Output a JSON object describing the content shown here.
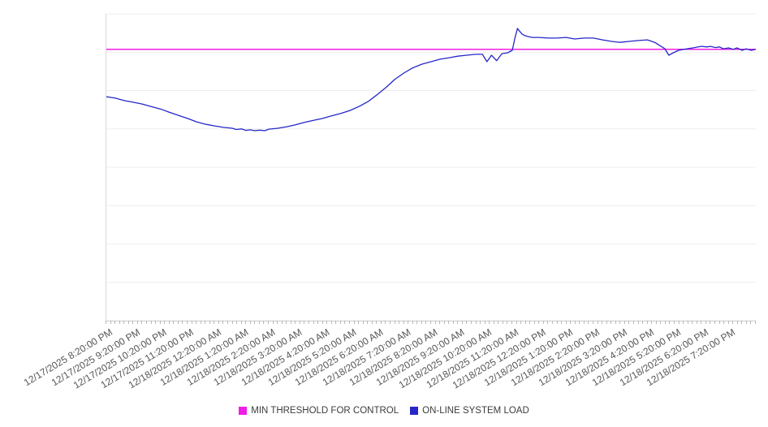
{
  "chart_data": {
    "type": "line",
    "title": "",
    "xlabel": "",
    "ylabel": "",
    "ylim": [
      0,
      100
    ],
    "grid_divisions": 8,
    "grid_on": true,
    "grid_color": "#ededed",
    "axis_color": "#b5b5b5",
    "label_color": "#565656",
    "legend_position": "bottom-center",
    "minor_ticks_per_label": 6,
    "x_labels": [
      "12/17/2025 8:20:00 PM",
      "12/17/2025 9:20:00 PM",
      "12/17/2025 10:20:00 PM",
      "12/17/2025 11:20:00 PM",
      "12/18/2025 12:20:00 AM",
      "12/18/2025 1:20:00 AM",
      "12/18/2025 2:20:00 AM",
      "12/18/2025 3:20:00 AM",
      "12/18/2025 4:20:00 AM",
      "12/18/2025 5:20:00 AM",
      "12/18/2025 6:20:00 AM",
      "12/18/2025 7:20:00 AM",
      "12/18/2025 8:20:00 AM",
      "12/18/2025 9:20:00 AM",
      "12/18/2025 10:20:00 AM",
      "12/18/2025 11:20:00 AM",
      "12/18/2025 12:20:00 PM",
      "12/18/2025 1:20:00 PM",
      "12/18/2025 2:20:00 PM",
      "12/18/2025 3:20:00 PM",
      "12/18/2025 4:20:00 PM",
      "12/18/2025 5:20:00 PM",
      "12/18/2025 6:20:00 PM",
      "12/18/2025 7:20:00 PM"
    ],
    "series": [
      {
        "name": "MIN THRESHOLD FOR CONTROL",
        "kind": "threshold",
        "color": "#f01ee6",
        "value": 88.4,
        "stroke_width": 1.5
      },
      {
        "name": "ON-LINE SYSTEM LOAD",
        "kind": "line",
        "color": "#2626c9",
        "stroke_width": 1.3,
        "points": [
          [
            0.0,
            73.0
          ],
          [
            0.014,
            72.5
          ],
          [
            0.028,
            71.7
          ],
          [
            0.041,
            71.2
          ],
          [
            0.055,
            70.6
          ],
          [
            0.069,
            69.8
          ],
          [
            0.083,
            69.0
          ],
          [
            0.096,
            68.0
          ],
          [
            0.111,
            66.9
          ],
          [
            0.125,
            65.9
          ],
          [
            0.139,
            64.8
          ],
          [
            0.153,
            64.0
          ],
          [
            0.166,
            63.5
          ],
          [
            0.18,
            63.0
          ],
          [
            0.194,
            62.7
          ],
          [
            0.2,
            62.3
          ],
          [
            0.208,
            62.5
          ],
          [
            0.215,
            62.0
          ],
          [
            0.221,
            62.2
          ],
          [
            0.229,
            61.9
          ],
          [
            0.236,
            62.1
          ],
          [
            0.244,
            61.9
          ],
          [
            0.25,
            62.4
          ],
          [
            0.264,
            62.7
          ],
          [
            0.278,
            63.2
          ],
          [
            0.291,
            63.8
          ],
          [
            0.305,
            64.6
          ],
          [
            0.319,
            65.3
          ],
          [
            0.333,
            65.9
          ],
          [
            0.346,
            66.7
          ],
          [
            0.361,
            67.5
          ],
          [
            0.375,
            68.5
          ],
          [
            0.389,
            69.8
          ],
          [
            0.403,
            71.4
          ],
          [
            0.416,
            73.5
          ],
          [
            0.43,
            75.9
          ],
          [
            0.444,
            78.6
          ],
          [
            0.458,
            80.7
          ],
          [
            0.471,
            82.3
          ],
          [
            0.486,
            83.6
          ],
          [
            0.5,
            84.4
          ],
          [
            0.514,
            85.2
          ],
          [
            0.528,
            85.7
          ],
          [
            0.541,
            86.2
          ],
          [
            0.555,
            86.5
          ],
          [
            0.569,
            86.8
          ],
          [
            0.579,
            86.8
          ],
          [
            0.586,
            84.4
          ],
          [
            0.593,
            86.5
          ],
          [
            0.601,
            84.7
          ],
          [
            0.609,
            87.0
          ],
          [
            0.618,
            87.3
          ],
          [
            0.625,
            88.1
          ],
          [
            0.629,
            92.0
          ],
          [
            0.633,
            95.2
          ],
          [
            0.636,
            94.4
          ],
          [
            0.64,
            93.4
          ],
          [
            0.644,
            92.9
          ],
          [
            0.649,
            92.6
          ],
          [
            0.656,
            92.3
          ],
          [
            0.666,
            92.3
          ],
          [
            0.68,
            92.1
          ],
          [
            0.694,
            92.1
          ],
          [
            0.708,
            92.3
          ],
          [
            0.721,
            91.8
          ],
          [
            0.736,
            92.1
          ],
          [
            0.75,
            92.1
          ],
          [
            0.764,
            91.5
          ],
          [
            0.778,
            91.0
          ],
          [
            0.791,
            90.7
          ],
          [
            0.805,
            91.0
          ],
          [
            0.819,
            91.3
          ],
          [
            0.833,
            91.5
          ],
          [
            0.84,
            91.0
          ],
          [
            0.846,
            90.5
          ],
          [
            0.854,
            89.4
          ],
          [
            0.86,
            88.6
          ],
          [
            0.866,
            86.5
          ],
          [
            0.873,
            87.3
          ],
          [
            0.881,
            88.1
          ],
          [
            0.889,
            88.4
          ],
          [
            0.903,
            88.9
          ],
          [
            0.916,
            89.4
          ],
          [
            0.925,
            89.2
          ],
          [
            0.93,
            89.4
          ],
          [
            0.938,
            89.0
          ],
          [
            0.944,
            89.2
          ],
          [
            0.95,
            88.6
          ],
          [
            0.958,
            88.9
          ],
          [
            0.965,
            88.4
          ],
          [
            0.971,
            88.9
          ],
          [
            0.979,
            88.1
          ],
          [
            0.985,
            88.6
          ],
          [
            0.993,
            88.1
          ],
          [
            1.0,
            88.4
          ]
        ]
      }
    ]
  },
  "legend": {
    "items": [
      {
        "label": "MIN THRESHOLD FOR CONTROL",
        "color": "#f01ee6"
      },
      {
        "label": "ON-LINE SYSTEM LOAD",
        "color": "#2626c9"
      }
    ]
  }
}
